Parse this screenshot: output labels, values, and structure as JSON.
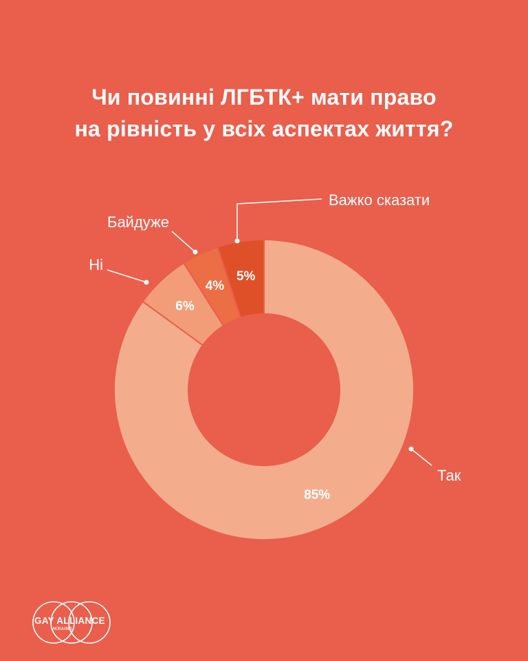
{
  "title_lines": [
    "Чи повинні ЛГБТК+ мати право",
    "на рівність у всіх аспектах життя?"
  ],
  "chart_data": {
    "type": "pie",
    "title": "Чи повинні ЛГБТК+ мати право на рівність у всіх аспектах життя?",
    "slices": [
      {
        "label": "Так",
        "value": 85,
        "value_label": "85%",
        "color": "#F4AD8C"
      },
      {
        "label": "Ні",
        "value": 6,
        "value_label": "6%",
        "color": "#F29D78"
      },
      {
        "label": "Байдуже",
        "value": 4,
        "value_label": "4%",
        "color": "#EC6E45"
      },
      {
        "label": "Важко сказати",
        "value": 5,
        "value_label": "5%",
        "color": "#DF5029"
      }
    ]
  },
  "logo": {
    "name": "GAY ALLIANCE",
    "sub": "UKRAINE"
  }
}
